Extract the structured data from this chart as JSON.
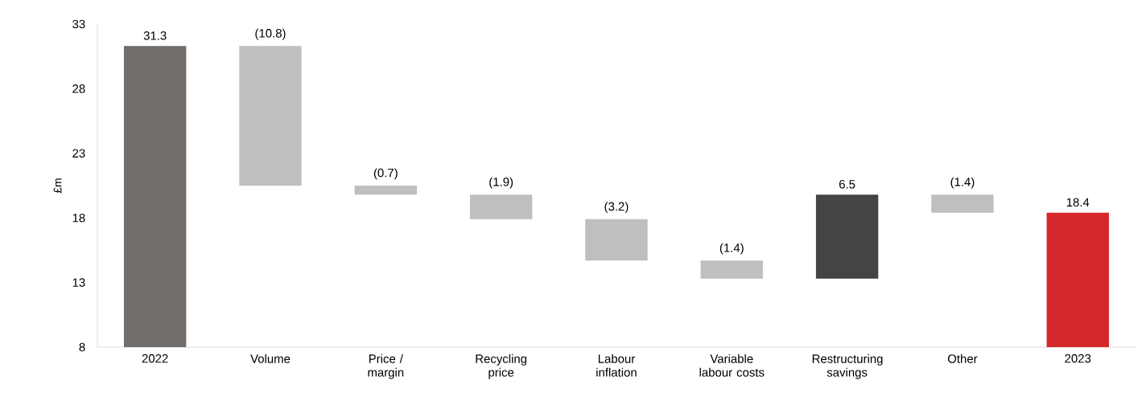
{
  "chart_data": {
    "type": "bar",
    "ylabel": "£m",
    "categories": [
      "2022",
      "Volume",
      "Price / margin",
      "Recycling price",
      "Labour inflation",
      "Variable labour costs",
      "Restructuring savings",
      "Other",
      "2023"
    ],
    "values": [
      31.3,
      -10.8,
      -0.7,
      -1.9,
      -3.2,
      -1.4,
      6.5,
      -1.4,
      18.4
    ],
    "base": [
      0,
      31.3,
      20.5,
      19.8,
      17.9,
      14.7,
      13.3,
      19.8,
      0
    ],
    "value_labels": [
      "31.3",
      "(10.8)",
      "(0.7)",
      "(1.9)",
      "(3.2)",
      "(1.4)",
      "6.5",
      "(1.4)",
      "18.4"
    ],
    "colors": [
      "#716d6a",
      "#bfbfbf",
      "#bfbfbf",
      "#bfbfbf",
      "#bfbfbf",
      "#bfbfbf",
      "#454343",
      "#bfbfbf",
      "#d5272e"
    ],
    "ylim": [
      8,
      33
    ],
    "yticks": [
      8,
      13,
      18,
      23,
      28,
      33
    ],
    "grid": false
  }
}
